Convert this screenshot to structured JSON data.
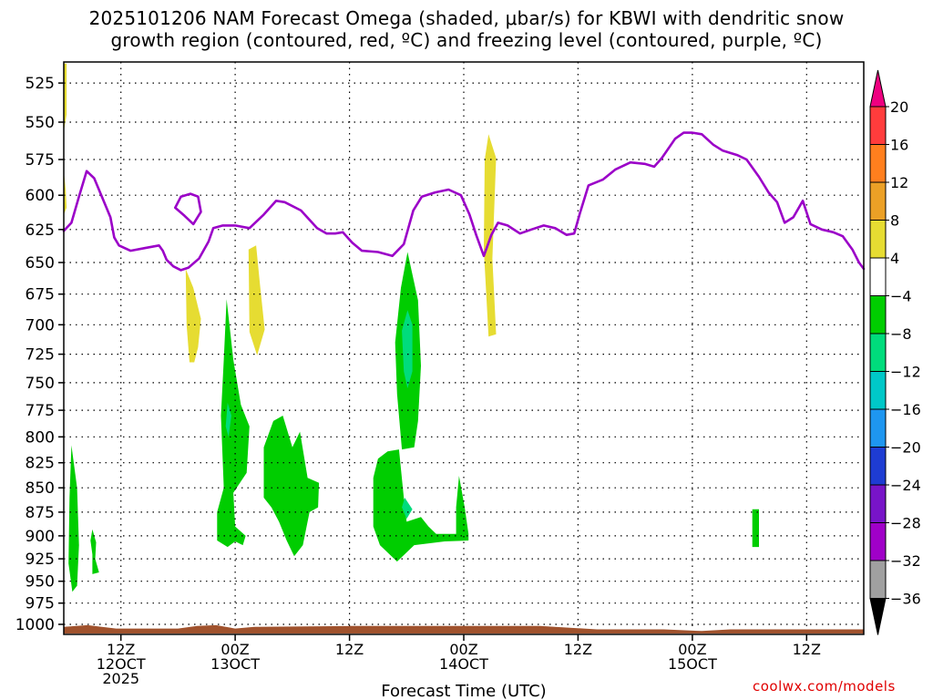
{
  "chart_data": {
    "type": "contour",
    "title": "2025101206 NAM Forecast Omega (shaded, μbar/s) for KBWI with dendritic snow\ngrowth region (contoured, red, ºC) and freezing level (contoured, purple, ºC)",
    "xlabel": "Forecast Time (UTC)",
    "ylabel": "",
    "credit": "coolwx.com/models",
    "x_ticks": [
      {
        "hour": 6,
        "labels": [
          "12Z",
          "12OCT",
          "2025"
        ]
      },
      {
        "hour": 18,
        "labels": [
          "00Z",
          "13OCT"
        ]
      },
      {
        "hour": 30,
        "labels": [
          "12Z"
        ]
      },
      {
        "hour": 42,
        "labels": [
          "00Z",
          "14OCT"
        ]
      },
      {
        "hour": 54,
        "labels": [
          "12Z"
        ]
      },
      {
        "hour": 66,
        "labels": [
          "00Z",
          "15OCT"
        ]
      },
      {
        "hour": 78,
        "labels": [
          "12Z"
        ]
      }
    ],
    "xlim": [
      0,
      84
    ],
    "y_ticks": [
      525,
      550,
      575,
      600,
      625,
      650,
      675,
      700,
      725,
      750,
      775,
      800,
      825,
      850,
      875,
      900,
      925,
      950,
      975,
      1000
    ],
    "ylim": [
      512,
      1012
    ],
    "y_scale": "log-pressure",
    "grid": true,
    "colorbar": {
      "labels": [
        "20",
        "16",
        "12",
        "8",
        "4",
        "−4",
        "−8",
        "−12",
        "−16",
        "−20",
        "−24",
        "−28",
        "−32",
        "−36"
      ],
      "colors": [
        "#ee0080",
        "#ff3c3c",
        "#ff7f1e",
        "#eba026",
        "#e6dc32",
        "#ffffff",
        "#00cd00",
        "#00dc7c",
        "#00c8c8",
        "#1e96f0",
        "#1e3cd2",
        "#7814c8",
        "#a000c8",
        "#a0a0a0",
        "#000000"
      ]
    },
    "series": [
      {
        "kind": "freezing-level",
        "color": "#9b00c8",
        "points": [
          [
            0,
            626
          ],
          [
            0.8,
            620
          ],
          [
            1.6,
            601
          ],
          [
            2.4,
            583
          ],
          [
            3.2,
            588
          ],
          [
            4,
            601
          ],
          [
            4.9,
            616
          ],
          [
            5.3,
            631
          ],
          [
            5.8,
            637
          ],
          [
            7,
            641
          ],
          [
            8.5,
            639
          ],
          [
            10,
            637
          ],
          [
            10.4,
            641
          ],
          [
            10.8,
            648
          ],
          [
            11.5,
            653
          ],
          [
            12.3,
            656
          ],
          [
            13.1,
            654
          ],
          [
            14.2,
            647
          ],
          [
            15.2,
            634
          ],
          [
            15.7,
            624
          ],
          [
            16.7,
            622
          ],
          [
            18,
            622
          ],
          [
            19.5,
            624
          ],
          [
            21,
            614
          ],
          [
            22.3,
            604
          ],
          [
            23.2,
            605
          ],
          [
            24.9,
            611
          ],
          [
            26.6,
            624
          ],
          [
            27.6,
            628
          ],
          [
            28.5,
            628
          ],
          [
            29.3,
            627
          ],
          [
            30.3,
            635
          ],
          [
            31.3,
            641
          ],
          [
            33,
            642
          ],
          [
            34.5,
            645
          ],
          [
            35.7,
            636
          ],
          [
            36.7,
            611
          ],
          [
            37.6,
            601
          ],
          [
            39,
            598
          ],
          [
            40.4,
            596
          ],
          [
            41.7,
            600
          ],
          [
            42.6,
            614
          ],
          [
            43.3,
            629
          ],
          [
            44.1,
            645
          ],
          [
            44.9,
            629
          ],
          [
            45.6,
            620
          ],
          [
            46.6,
            622
          ],
          [
            47.9,
            628
          ],
          [
            49.1,
            625
          ],
          [
            50.4,
            622
          ],
          [
            51.6,
            624
          ],
          [
            52.8,
            629
          ],
          [
            53.6,
            628
          ],
          [
            54.2,
            613
          ],
          [
            55.1,
            593
          ],
          [
            56.6,
            589
          ],
          [
            57.9,
            582
          ],
          [
            59.5,
            577
          ],
          [
            61,
            578
          ],
          [
            62,
            580
          ],
          [
            62.8,
            574
          ],
          [
            64.2,
            561
          ],
          [
            65.1,
            557
          ],
          [
            66,
            557
          ],
          [
            67,
            558
          ],
          [
            68.2,
            565
          ],
          [
            69.2,
            569
          ],
          [
            70.7,
            572
          ],
          [
            71.7,
            575
          ],
          [
            73,
            587
          ],
          [
            74,
            598
          ],
          [
            74.9,
            605
          ],
          [
            75.7,
            620
          ],
          [
            76.6,
            616
          ],
          [
            77.6,
            604
          ],
          [
            78.4,
            621
          ],
          [
            79.6,
            625
          ],
          [
            80.8,
            627
          ],
          [
            81.8,
            630
          ],
          [
            82.8,
            640
          ],
          [
            83.5,
            650
          ],
          [
            84,
            655
          ]
        ]
      },
      {
        "kind": "freezing-level-closed",
        "color": "#9b00c8",
        "points": [
          [
            11.7,
            609
          ],
          [
            12.3,
            601
          ],
          [
            13.3,
            599
          ],
          [
            14.1,
            601
          ],
          [
            14.4,
            612
          ],
          [
            13.6,
            621
          ],
          [
            12.7,
            615
          ],
          [
            11.7,
            609
          ]
        ]
      }
    ],
    "omega_regions": [
      {
        "value_class": "4 to 8",
        "color": "#e6dc32",
        "points": [
          [
            0,
            513
          ],
          [
            0.3,
            513
          ],
          [
            0.3,
            545
          ],
          [
            0,
            556
          ]
        ]
      },
      {
        "value_class": "4 to 8",
        "color": "#e6dc32",
        "points": [
          [
            0,
            583
          ],
          [
            0.2,
            596
          ],
          [
            0.3,
            609
          ],
          [
            0,
            614
          ]
        ]
      },
      {
        "value_class": "4 to 8",
        "color": "#e6dc32",
        "points": [
          [
            12.8,
            655
          ],
          [
            13.6,
            670
          ],
          [
            14.4,
            695
          ],
          [
            14.1,
            719
          ],
          [
            13.7,
            732
          ],
          [
            13.2,
            732
          ],
          [
            12.9,
            700
          ]
        ]
      },
      {
        "value_class": "4 to 8",
        "color": "#e6dc32",
        "points": [
          [
            19.4,
            640
          ],
          [
            20.2,
            637
          ],
          [
            20.6,
            667
          ],
          [
            21.1,
            704
          ],
          [
            20.3,
            726
          ],
          [
            19.5,
            706
          ]
        ]
      },
      {
        "value_class": "4 to 8",
        "color": "#e6dc32",
        "points": [
          [
            44.6,
            558
          ],
          [
            45.4,
            574
          ],
          [
            45,
            647
          ],
          [
            45.4,
            708
          ],
          [
            44.6,
            710
          ],
          [
            44.1,
            640
          ],
          [
            44.2,
            575
          ]
        ]
      },
      {
        "value_class": "-4 to -8",
        "color": "#00cd00",
        "points": [
          [
            0.8,
            808
          ],
          [
            1.4,
            850
          ],
          [
            1.6,
            910
          ],
          [
            1.4,
            955
          ],
          [
            0.9,
            962
          ],
          [
            0.5,
            930
          ],
          [
            0.6,
            860
          ]
        ]
      },
      {
        "value_class": "-4 to -8",
        "color": "#00cd00",
        "points": [
          [
            3,
            893
          ],
          [
            3.4,
            907
          ],
          [
            3.3,
            925
          ],
          [
            3.7,
            940
          ],
          [
            3,
            942
          ],
          [
            3,
            920
          ],
          [
            2.8,
            905
          ]
        ]
      },
      {
        "value_class": "-4 to -8",
        "color": "#00cd00",
        "points": [
          [
            17.1,
            679
          ],
          [
            17.8,
            730
          ],
          [
            18.6,
            770
          ],
          [
            19.5,
            790
          ],
          [
            19.2,
            835
          ],
          [
            17.8,
            855
          ],
          [
            18,
            890
          ],
          [
            19.1,
            900
          ],
          [
            18.8,
            910
          ],
          [
            18,
            906
          ],
          [
            17.2,
            912
          ],
          [
            16.1,
            905
          ],
          [
            16.1,
            875
          ],
          [
            16.8,
            850
          ],
          [
            16.5,
            780
          ],
          [
            16.8,
            730
          ]
        ]
      },
      {
        "value_class": "-4 to -8",
        "color": "#00cd00",
        "points": [
          [
            21,
            810
          ],
          [
            22,
            785
          ],
          [
            23,
            780
          ],
          [
            24,
            810
          ],
          [
            24.8,
            795
          ],
          [
            25.6,
            840
          ],
          [
            26.8,
            845
          ],
          [
            26.7,
            870
          ],
          [
            25.8,
            875
          ],
          [
            25.1,
            910
          ],
          [
            24.2,
            922
          ],
          [
            23.4,
            905
          ],
          [
            22.6,
            885
          ],
          [
            21.8,
            870
          ],
          [
            21,
            860
          ]
        ]
      },
      {
        "value_class": "-4 to -8",
        "color": "#00cd00",
        "points": [
          [
            33,
            821
          ],
          [
            34,
            814
          ],
          [
            35.2,
            812
          ],
          [
            35.7,
            860
          ],
          [
            36,
            885
          ],
          [
            37.5,
            880
          ],
          [
            38.3,
            890
          ],
          [
            39.1,
            898
          ],
          [
            42.5,
            898
          ],
          [
            42.5,
            905
          ],
          [
            40,
            906
          ],
          [
            36.8,
            910
          ],
          [
            35,
            928
          ],
          [
            33.2,
            910
          ],
          [
            32.5,
            890
          ],
          [
            32.5,
            840
          ]
        ]
      },
      {
        "value_class": "-4 to -8",
        "color": "#00cd00",
        "points": [
          [
            36.1,
            642
          ],
          [
            37.2,
            680
          ],
          [
            37.5,
            735
          ],
          [
            37.2,
            785
          ],
          [
            36.8,
            810
          ],
          [
            35.5,
            812
          ],
          [
            35,
            760
          ],
          [
            34.8,
            715
          ],
          [
            35.4,
            670
          ]
        ]
      },
      {
        "value_class": "-4 to -8",
        "color": "#00cd00",
        "points": [
          [
            41.5,
            838
          ],
          [
            42.1,
            870
          ],
          [
            42.5,
            898
          ],
          [
            41.2,
            905
          ],
          [
            41.2,
            870
          ]
        ]
      },
      {
        "value_class": "-4 to -8",
        "color": "#00cd00",
        "points": [
          [
            72.3,
            872
          ],
          [
            73,
            872
          ],
          [
            73,
            912
          ],
          [
            72.3,
            912
          ]
        ]
      },
      {
        "value_class": "-8 to -12",
        "color": "#00dc7c",
        "points": [
          [
            36.1,
            688
          ],
          [
            36.6,
            700
          ],
          [
            36.6,
            740
          ],
          [
            36.1,
            755
          ],
          [
            35.7,
            740
          ],
          [
            35.5,
            705
          ]
        ]
      },
      {
        "value_class": "-8 to -12",
        "color": "#00dc7c",
        "points": [
          [
            17.2,
            768
          ],
          [
            17.6,
            780
          ],
          [
            17.3,
            800
          ],
          [
            17,
            790
          ]
        ]
      },
      {
        "value_class": "-8 to -12",
        "color": "#00dc7c",
        "points": [
          [
            35.8,
            860
          ],
          [
            36.6,
            872
          ],
          [
            36,
            882
          ],
          [
            35.5,
            870
          ]
        ]
      }
    ],
    "surface": {
      "color": "#a0522d",
      "points": [
        [
          0,
          1003
        ],
        [
          2.5,
          1001
        ],
        [
          4,
          1003
        ],
        [
          5.5,
          1005
        ],
        [
          12,
          1005
        ],
        [
          14,
          1002
        ],
        [
          16,
          1001
        ],
        [
          18,
          1005
        ],
        [
          20,
          1003
        ],
        [
          30,
          1002
        ],
        [
          43,
          1002
        ],
        [
          50,
          1002
        ],
        [
          56,
          1006
        ],
        [
          63,
          1006
        ],
        [
          67,
          1008
        ],
        [
          70,
          1006
        ],
        [
          84,
          1006
        ]
      ]
    }
  }
}
